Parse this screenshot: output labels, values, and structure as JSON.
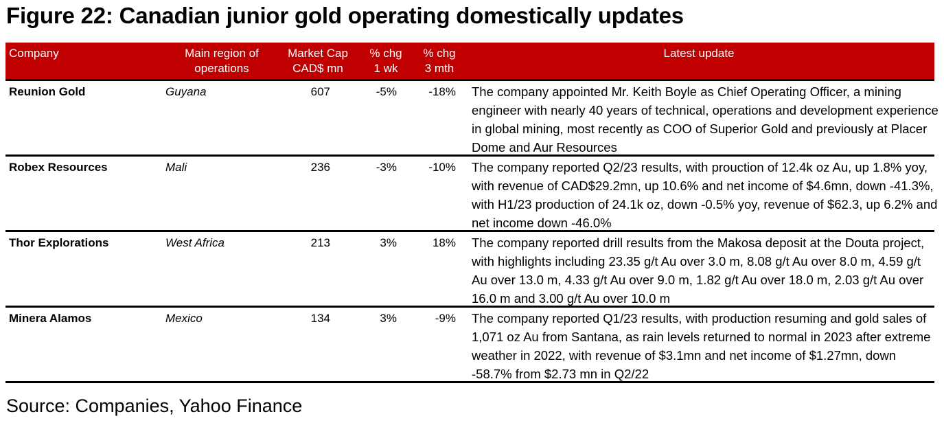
{
  "title": "Figure 22: Canadian junior gold operating domestically updates",
  "header": {
    "company": "Company",
    "region_line1": "Main region of",
    "region_line2": "operations",
    "mcap_line1": "Market Cap",
    "mcap_line2": "CAD$ mn",
    "chg1_line1": "% chg",
    "chg1_line2": "1 wk",
    "chg3_line1": "% chg",
    "chg3_line2": "3 mth",
    "update": "Latest update"
  },
  "rows": [
    {
      "company": "Reunion Gold",
      "region": "Guyana",
      "market_cap": "607",
      "chg_1wk": "-5%",
      "chg_3mth": "-18%",
      "update": "The company appointed Mr. Keith Boyle as Chief Operating Officer, a mining engineer with nearly 40 years of technical, operations and development experience in global mining, most recently as COO of Superior Gold and previously at Placer Dome and Aur Resources"
    },
    {
      "company": "Robex Resources",
      "region": "Mali",
      "market_cap": "236",
      "chg_1wk": "-3%",
      "chg_3mth": "-10%",
      "update": "The company reported Q2/23 results, with prouction of 12.4k oz Au, up 1.8% yoy, with revenue of CAD$29.2mn, up 10.6% and net income of $4.6mn, down -41.3%, with H1/23 production of 24.1k oz, down -0.5% yoy, revenue of $62.3, up 6.2% and net income down -46.0%"
    },
    {
      "company": "Thor Explorations",
      "region": "West Africa",
      "market_cap": "213",
      "chg_1wk": "3%",
      "chg_3mth": "18%",
      "update": "The company reported drill results from the Makosa deposit at the Douta project, with highlights including 23.35 g/t Au over 3.0 m, 8.08 g/t Au over 8.0 m, 4.59 g/t Au over 13.0 m, 4.33 g/t Au over 9.0 m, 1.82 g/t Au over 18.0 m, 2.03 g/t Au over 16.0 m and 3.00 g/t Au over 10.0 m"
    },
    {
      "company": "Minera Alamos",
      "region": "Mexico",
      "market_cap": "134",
      "chg_1wk": "3%",
      "chg_3mth": "-9%",
      "update": "The company reported Q1/23 results, with production resuming and gold sales of 1,071 oz Au from Santana, as rain levels returned to normal in 2023 after extreme weather in 2022, with revenue of $3.1mn and net income of $1.27mn, down -58.7% from $2.73 mn in Q2/22"
    }
  ],
  "source": "Source: Companies, Yahoo Finance",
  "colors": {
    "header_bg": "#c00000",
    "header_text": "#ffffff"
  }
}
